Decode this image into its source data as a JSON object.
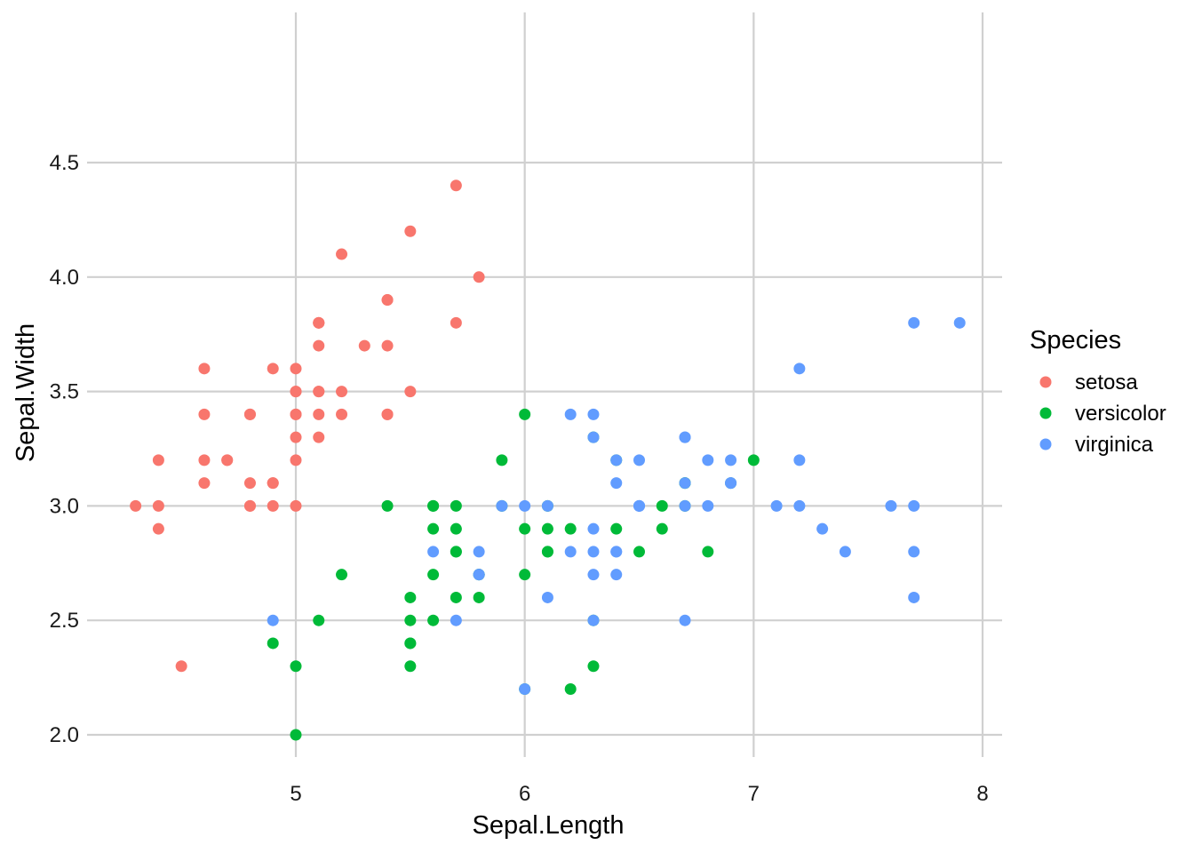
{
  "chart_data": {
    "type": "scatter",
    "xlabel": "Sepal.Length",
    "ylabel": "Sepal.Width",
    "xlim": [
      4.2,
      8.1
    ],
    "ylim": [
      1.88,
      4.52
    ],
    "xticks": [
      5,
      6,
      7,
      8
    ],
    "xtick_labels": [
      "5",
      "6",
      "7",
      "8"
    ],
    "yticks": [
      2.0,
      2.5,
      3.0,
      3.5,
      4.0,
      4.5
    ],
    "ytick_labels": [
      "2.0",
      "2.5",
      "3.0",
      "3.5",
      "4.0",
      "4.5"
    ],
    "grid": true,
    "legend": {
      "title": "Species",
      "position": "right"
    },
    "series": [
      {
        "name": "setosa",
        "color": "#F8766D",
        "points": [
          [
            5.1,
            3.5
          ],
          [
            4.9,
            3.0
          ],
          [
            4.7,
            3.2
          ],
          [
            4.6,
            3.1
          ],
          [
            5.0,
            3.6
          ],
          [
            5.4,
            3.9
          ],
          [
            4.6,
            3.4
          ],
          [
            5.0,
            3.4
          ],
          [
            4.4,
            2.9
          ],
          [
            4.9,
            3.1
          ],
          [
            5.4,
            3.7
          ],
          [
            4.8,
            3.4
          ],
          [
            4.8,
            3.0
          ],
          [
            4.3,
            3.0
          ],
          [
            5.8,
            4.0
          ],
          [
            5.7,
            4.4
          ],
          [
            5.4,
            3.9
          ],
          [
            5.1,
            3.5
          ],
          [
            5.7,
            3.8
          ],
          [
            5.1,
            3.8
          ],
          [
            5.4,
            3.4
          ],
          [
            5.1,
            3.7
          ],
          [
            4.6,
            3.6
          ],
          [
            5.1,
            3.3
          ],
          [
            4.8,
            3.4
          ],
          [
            5.0,
            3.0
          ],
          [
            5.0,
            3.4
          ],
          [
            5.2,
            3.5
          ],
          [
            5.2,
            3.4
          ],
          [
            4.7,
            3.2
          ],
          [
            4.8,
            3.1
          ],
          [
            5.4,
            3.4
          ],
          [
            5.2,
            4.1
          ],
          [
            5.5,
            4.2
          ],
          [
            4.9,
            3.1
          ],
          [
            5.0,
            3.2
          ],
          [
            5.5,
            3.5
          ],
          [
            4.9,
            3.6
          ],
          [
            4.4,
            3.0
          ],
          [
            5.1,
            3.4
          ],
          [
            5.0,
            3.5
          ],
          [
            4.5,
            2.3
          ],
          [
            4.4,
            3.2
          ],
          [
            5.0,
            3.5
          ],
          [
            5.1,
            3.8
          ],
          [
            4.8,
            3.0
          ],
          [
            5.1,
            3.8
          ],
          [
            4.6,
            3.2
          ],
          [
            5.3,
            3.7
          ],
          [
            5.0,
            3.3
          ]
        ]
      },
      {
        "name": "versicolor",
        "color": "#00BA38",
        "points": [
          [
            7.0,
            3.2
          ],
          [
            6.4,
            3.2
          ],
          [
            6.9,
            3.1
          ],
          [
            5.5,
            2.3
          ],
          [
            6.5,
            2.8
          ],
          [
            5.7,
            2.8
          ],
          [
            6.3,
            3.3
          ],
          [
            4.9,
            2.4
          ],
          [
            6.6,
            2.9
          ],
          [
            5.2,
            2.7
          ],
          [
            5.0,
            2.0
          ],
          [
            5.9,
            3.0
          ],
          [
            6.0,
            2.2
          ],
          [
            6.1,
            2.9
          ],
          [
            5.6,
            2.9
          ],
          [
            6.7,
            3.1
          ],
          [
            5.6,
            3.0
          ],
          [
            5.8,
            2.7
          ],
          [
            6.2,
            2.2
          ],
          [
            5.6,
            2.5
          ],
          [
            5.9,
            3.2
          ],
          [
            6.1,
            2.8
          ],
          [
            6.3,
            2.5
          ],
          [
            6.1,
            2.8
          ],
          [
            6.4,
            2.9
          ],
          [
            6.6,
            3.0
          ],
          [
            6.8,
            2.8
          ],
          [
            6.7,
            3.0
          ],
          [
            6.0,
            2.9
          ],
          [
            5.7,
            2.6
          ],
          [
            5.5,
            2.4
          ],
          [
            5.5,
            2.4
          ],
          [
            5.8,
            2.7
          ],
          [
            6.0,
            2.7
          ],
          [
            5.4,
            3.0
          ],
          [
            6.0,
            3.4
          ],
          [
            6.7,
            3.1
          ],
          [
            6.3,
            2.3
          ],
          [
            5.6,
            3.0
          ],
          [
            5.5,
            2.5
          ],
          [
            5.5,
            2.6
          ],
          [
            6.1,
            3.0
          ],
          [
            5.8,
            2.6
          ],
          [
            5.0,
            2.3
          ],
          [
            5.6,
            2.7
          ],
          [
            5.7,
            3.0
          ],
          [
            5.7,
            2.9
          ],
          [
            6.2,
            2.9
          ],
          [
            5.1,
            2.5
          ],
          [
            5.7,
            2.8
          ]
        ]
      },
      {
        "name": "virginica",
        "color": "#619CFF",
        "points": [
          [
            6.3,
            3.3
          ],
          [
            5.8,
            2.7
          ],
          [
            7.1,
            3.0
          ],
          [
            6.3,
            2.9
          ],
          [
            6.5,
            3.0
          ],
          [
            7.6,
            3.0
          ],
          [
            4.9,
            2.5
          ],
          [
            7.3,
            2.9
          ],
          [
            6.7,
            2.5
          ],
          [
            7.2,
            3.6
          ],
          [
            6.5,
            3.2
          ],
          [
            6.4,
            2.7
          ],
          [
            6.8,
            3.0
          ],
          [
            5.7,
            2.5
          ],
          [
            5.8,
            2.8
          ],
          [
            6.4,
            3.2
          ],
          [
            6.5,
            3.0
          ],
          [
            7.7,
            3.8
          ],
          [
            7.7,
            2.6
          ],
          [
            6.0,
            2.2
          ],
          [
            6.9,
            3.2
          ],
          [
            5.6,
            2.8
          ],
          [
            7.7,
            2.8
          ],
          [
            6.3,
            2.7
          ],
          [
            6.7,
            3.3
          ],
          [
            7.2,
            3.2
          ],
          [
            6.2,
            2.8
          ],
          [
            6.1,
            3.0
          ],
          [
            6.4,
            2.8
          ],
          [
            7.2,
            3.0
          ],
          [
            7.4,
            2.8
          ],
          [
            7.9,
            3.8
          ],
          [
            6.4,
            2.8
          ],
          [
            6.3,
            2.8
          ],
          [
            6.1,
            2.6
          ],
          [
            7.7,
            3.0
          ],
          [
            6.3,
            3.4
          ],
          [
            6.4,
            3.1
          ],
          [
            6.0,
            3.0
          ],
          [
            6.9,
            3.1
          ],
          [
            6.7,
            3.1
          ],
          [
            6.9,
            3.1
          ],
          [
            5.8,
            2.7
          ],
          [
            6.8,
            3.2
          ],
          [
            6.7,
            3.3
          ],
          [
            6.7,
            3.0
          ],
          [
            6.3,
            2.5
          ],
          [
            6.5,
            3.0
          ],
          [
            6.2,
            3.4
          ],
          [
            5.9,
            3.0
          ]
        ]
      }
    ]
  }
}
